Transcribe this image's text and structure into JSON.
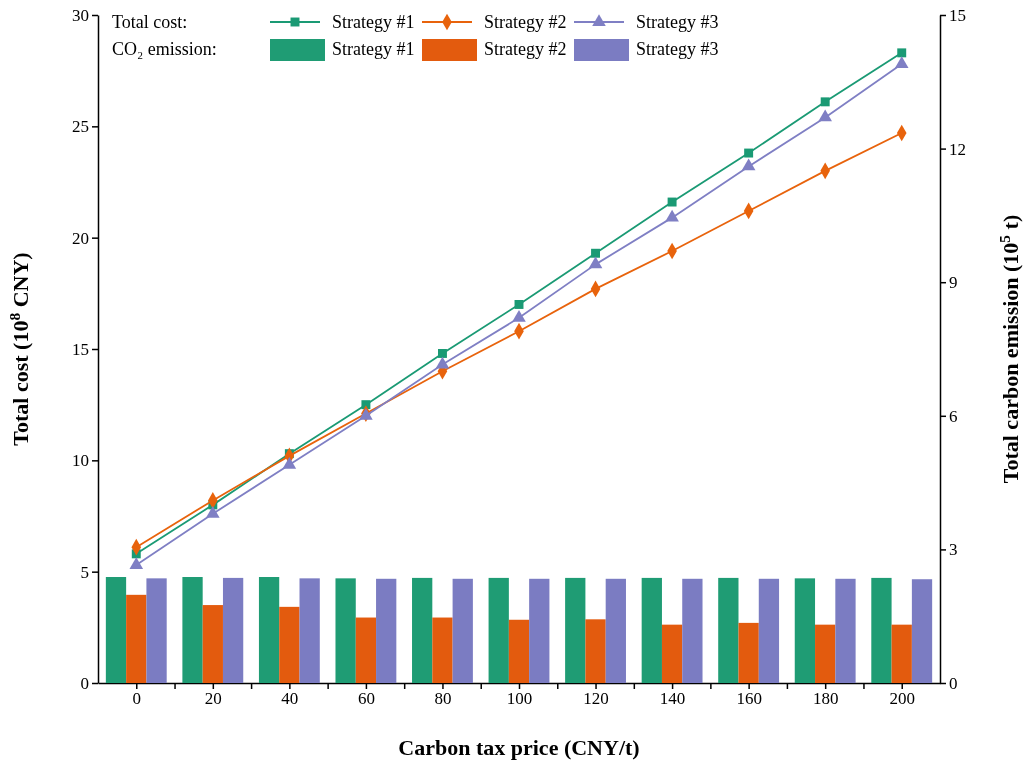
{
  "chart_data": {
    "type": "line",
    "xlabel": "Carbon tax price (CNY/t)",
    "ylabel": "Total cost (10$^{8}$ CNY)",
    "y2label": "Total carbon emission (10$^{5}$ t)",
    "x": [
      0,
      20,
      40,
      60,
      80,
      100,
      120,
      140,
      160,
      180,
      200
    ],
    "xlim": [
      -10,
      210
    ],
    "xticks": [
      0,
      {
        "value": 10,
        "label": null
      },
      20,
      {
        "value": 30,
        "label": null
      },
      40,
      {
        "value": 50,
        "label": null
      },
      60,
      {
        "value": 70,
        "label": null
      },
      80,
      {
        "value": 90,
        "label": null
      },
      100,
      {
        "value": 110,
        "label": null
      },
      120,
      {
        "value": 130,
        "label": null
      },
      140,
      {
        "value": 150,
        "label": null
      },
      160,
      {
        "value": 170,
        "label": null
      },
      180,
      {
        "value": 190,
        "label": null
      },
      200
    ],
    "ylim": [
      0,
      30
    ],
    "yticks": [
      0,
      5,
      10,
      15,
      20,
      25,
      30
    ],
    "y2lim": [
      0,
      15
    ],
    "y2ticks": [
      0,
      3,
      6,
      9,
      12,
      15
    ],
    "legend": "top left",
    "grid": false,
    "annotations": [
      "Total cost:",
      "CO₂ emission:"
    ],
    "series": [
      {
        "name": "Strategy #1",
        "marker": "square",
        "color": "#1a9a74",
        "values": [
          5.8,
          8.0,
          10.3,
          12.5,
          14.8,
          17.0,
          19.3,
          21.6,
          23.8,
          26.1,
          28.3
        ]
      },
      {
        "name": "Strategy #2",
        "marker": "diamond",
        "color": "#e8630c",
        "values": [
          6.1,
          8.2,
          10.2,
          12.1,
          14.0,
          15.8,
          17.7,
          19.4,
          21.2,
          23.0,
          24.7
        ]
      },
      {
        "name": "Strategy #3",
        "marker": "triangle",
        "color": "#7f7fc4",
        "values": [
          5.3,
          7.6,
          9.8,
          12.0,
          14.3,
          16.4,
          18.8,
          20.9,
          23.2,
          25.4,
          27.8
        ]
      },
      {
        "name": "Strategy #1",
        "type": "bar",
        "axis": "y2",
        "color": "#1f9c74",
        "values": [
          2.38,
          2.38,
          2.38,
          2.35,
          2.36,
          2.36,
          2.36,
          2.36,
          2.36,
          2.35,
          2.36
        ]
      },
      {
        "name": "Strategy #2",
        "type": "bar",
        "axis": "y2",
        "color": "#e35b0e",
        "values": [
          1.98,
          1.75,
          1.71,
          1.47,
          1.47,
          1.42,
          1.43,
          1.31,
          1.35,
          1.31,
          1.31
        ]
      },
      {
        "name": "Strategy #3",
        "type": "bar",
        "axis": "y2",
        "color": "#7b7cc2",
        "values": [
          2.35,
          2.36,
          2.35,
          2.34,
          2.34,
          2.34,
          2.34,
          2.34,
          2.34,
          2.34,
          2.33
        ]
      }
    ]
  }
}
